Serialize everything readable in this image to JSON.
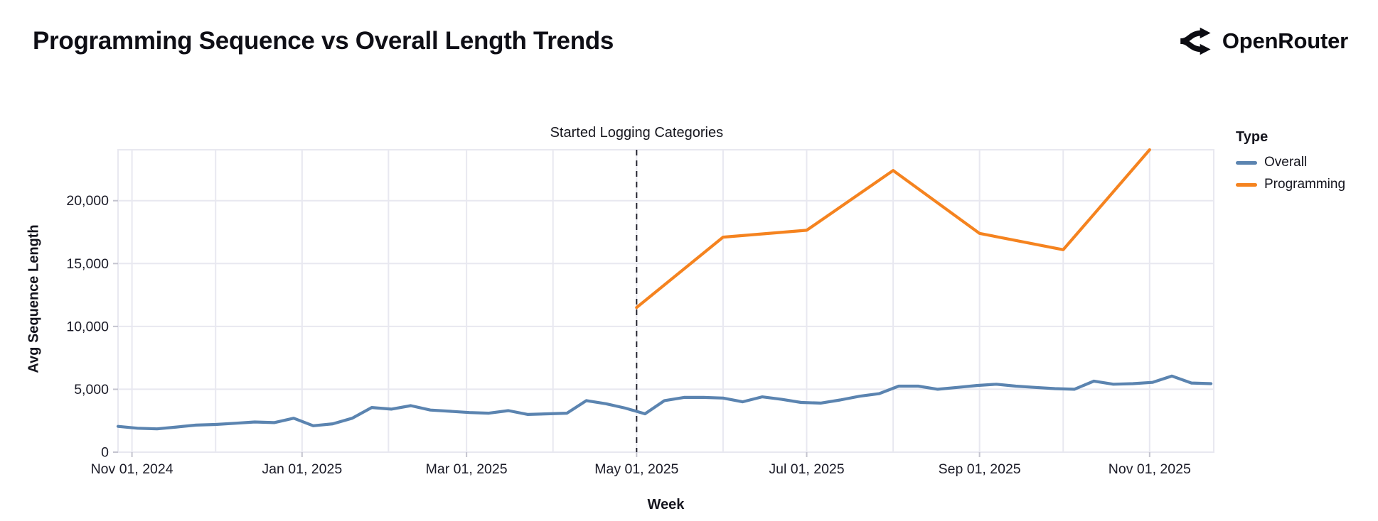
{
  "header": {
    "title": "Programming Sequence vs Overall Length Trends",
    "brand": "OpenRouter"
  },
  "legend": {
    "title": "Type",
    "items": [
      {
        "label": "Overall",
        "color": "#5b84b0"
      },
      {
        "label": "Programming",
        "color": "#f5831f"
      }
    ]
  },
  "axes": {
    "x_title": "Week",
    "y_title": "Avg Sequence Length"
  },
  "annotation": {
    "label": "Started Logging Categories",
    "date": "2025-05-01"
  },
  "colors": {
    "grid": "#e8e8f0",
    "tick": "#c4c4cf",
    "tick_text": "#1a1a26",
    "annotation_line": "#25252f",
    "overall": "#5b84b0",
    "programming": "#f5831f"
  },
  "chart_data": {
    "type": "line",
    "title": "Programming Sequence vs Overall Length Trends",
    "xlabel": "Week",
    "ylabel": "Avg Sequence Length",
    "x_range": [
      "2024-10-27",
      "2025-11-24"
    ],
    "ylim": [
      0,
      24050
    ],
    "grid": true,
    "legend_position": "right",
    "y_ticks": [
      {
        "value": 0,
        "label": "0"
      },
      {
        "value": 5000,
        "label": "5,000"
      },
      {
        "value": 10000,
        "label": "10,000"
      },
      {
        "value": 15000,
        "label": "15,000"
      },
      {
        "value": 20000,
        "label": "20,000"
      }
    ],
    "x_ticks": [
      {
        "date": "2024-11-01",
        "label": "Nov 01, 2024"
      },
      {
        "date": "2025-01-01",
        "label": "Jan 01, 2025"
      },
      {
        "date": "2025-03-01",
        "label": "Mar 01, 2025"
      },
      {
        "date": "2025-05-01",
        "label": "May 01, 2025"
      },
      {
        "date": "2025-07-01",
        "label": "Jul 01, 2025"
      },
      {
        "date": "2025-09-01",
        "label": "Sep 01, 2025"
      },
      {
        "date": "2025-11-01",
        "label": "Nov 01, 2025"
      }
    ],
    "month_gridlines": [
      "2024-11-01",
      "2024-12-01",
      "2025-01-01",
      "2025-02-01",
      "2025-03-01",
      "2025-04-01",
      "2025-05-01",
      "2025-06-01",
      "2025-07-01",
      "2025-08-01",
      "2025-09-01",
      "2025-10-01",
      "2025-11-01"
    ],
    "annotation": {
      "date": "2025-05-01",
      "label": "Started Logging Categories"
    },
    "series": [
      {
        "name": "Overall",
        "color": "#5b84b0",
        "points": [
          [
            "2024-10-27",
            2050
          ],
          [
            "2024-11-03",
            1900
          ],
          [
            "2024-11-10",
            1850
          ],
          [
            "2024-11-17",
            2000
          ],
          [
            "2024-11-24",
            2150
          ],
          [
            "2024-12-01",
            2200
          ],
          [
            "2024-12-08",
            2300
          ],
          [
            "2024-12-15",
            2400
          ],
          [
            "2024-12-22",
            2350
          ],
          [
            "2024-12-29",
            2700
          ],
          [
            "2025-01-05",
            2100
          ],
          [
            "2025-01-12",
            2250
          ],
          [
            "2025-01-19",
            2700
          ],
          [
            "2025-01-26",
            3550
          ],
          [
            "2025-02-02",
            3420
          ],
          [
            "2025-02-09",
            3700
          ],
          [
            "2025-02-16",
            3350
          ],
          [
            "2025-02-23",
            3250
          ],
          [
            "2025-03-02",
            3150
          ],
          [
            "2025-03-09",
            3100
          ],
          [
            "2025-03-16",
            3300
          ],
          [
            "2025-03-23",
            3000
          ],
          [
            "2025-03-30",
            3050
          ],
          [
            "2025-04-06",
            3100
          ],
          [
            "2025-04-13",
            4100
          ],
          [
            "2025-04-20",
            3850
          ],
          [
            "2025-04-27",
            3500
          ],
          [
            "2025-05-04",
            3050
          ],
          [
            "2025-05-11",
            4100
          ],
          [
            "2025-05-18",
            4350
          ],
          [
            "2025-05-25",
            4350
          ],
          [
            "2025-06-01",
            4300
          ],
          [
            "2025-06-08",
            4000
          ],
          [
            "2025-06-15",
            4400
          ],
          [
            "2025-06-22",
            4200
          ],
          [
            "2025-06-29",
            3950
          ],
          [
            "2025-07-06",
            3900
          ],
          [
            "2025-07-13",
            4150
          ],
          [
            "2025-07-20",
            4450
          ],
          [
            "2025-07-27",
            4650
          ],
          [
            "2025-08-03",
            5250
          ],
          [
            "2025-08-10",
            5250
          ],
          [
            "2025-08-17",
            5000
          ],
          [
            "2025-08-24",
            5150
          ],
          [
            "2025-08-31",
            5300
          ],
          [
            "2025-09-07",
            5400
          ],
          [
            "2025-09-14",
            5250
          ],
          [
            "2025-09-21",
            5150
          ],
          [
            "2025-09-28",
            5050
          ],
          [
            "2025-10-05",
            5000
          ],
          [
            "2025-10-12",
            5650
          ],
          [
            "2025-10-19",
            5400
          ],
          [
            "2025-10-26",
            5450
          ],
          [
            "2025-11-02",
            5550
          ],
          [
            "2025-11-09",
            6050
          ],
          [
            "2025-11-16",
            5500
          ],
          [
            "2025-11-23",
            5450
          ]
        ]
      },
      {
        "name": "Programming",
        "color": "#f5831f",
        "points": [
          [
            "2025-05-01",
            11500
          ],
          [
            "2025-06-01",
            17100
          ],
          [
            "2025-07-01",
            17650
          ],
          [
            "2025-08-01",
            22400
          ],
          [
            "2025-09-01",
            17400
          ],
          [
            "2025-10-01",
            16100
          ],
          [
            "2025-11-01",
            24050
          ]
        ]
      }
    ]
  }
}
